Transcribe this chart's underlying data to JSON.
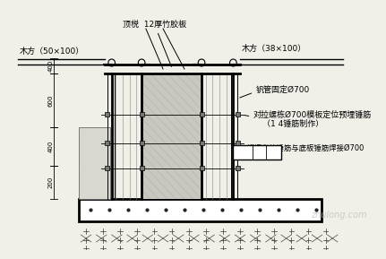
{
  "bg_color": "#f0efe8",
  "line_color": "#000000",
  "annotations": {
    "top_label": "顶棁  12厚竹胶板",
    "left_beam": "木方（50×100）",
    "right_beam": "木方（38×100）",
    "steel_pipe": "钒管固定Ø700",
    "tie_bolt": "对拉螺栋Ø700模板定位预埋锤筋",
    "tie_bolt2": "（1 4锤筋制作）",
    "weld": "模板定位锤筋与底板锤筋焊接Ø700"
  },
  "dim_labels": [
    "200",
    "400",
    "600",
    "400"
  ],
  "watermark": "zhulong.com"
}
